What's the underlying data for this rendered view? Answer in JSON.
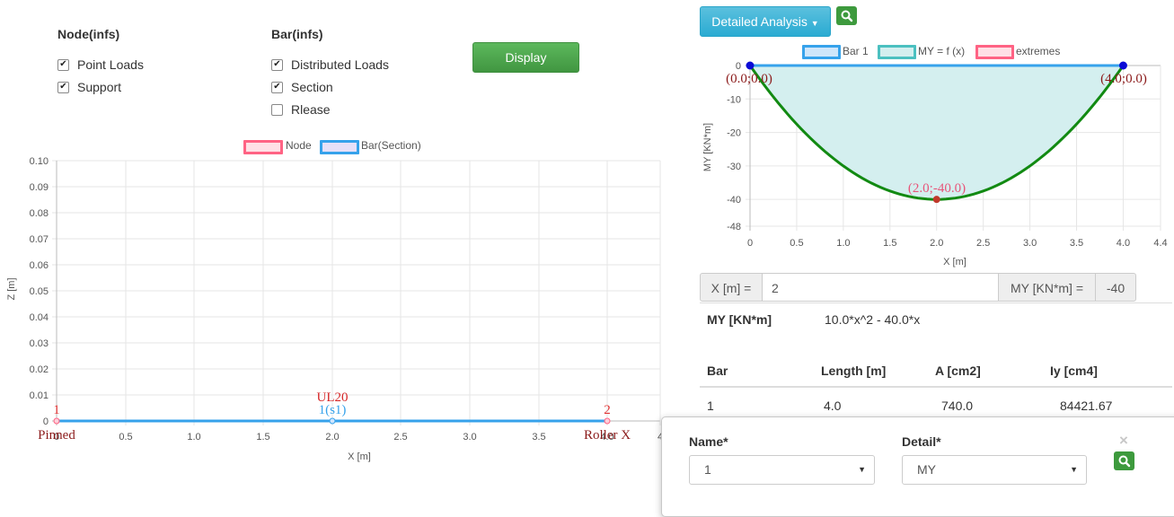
{
  "node_panel": {
    "title": "Node(infs)",
    "options": [
      {
        "label": "Point Loads",
        "checked": true
      },
      {
        "label": "Support",
        "checked": true
      }
    ]
  },
  "bar_panel": {
    "title": "Bar(infs)",
    "options": [
      {
        "label": "Distributed Loads",
        "checked": true
      },
      {
        "label": "Section",
        "checked": true
      },
      {
        "label": "Rlease",
        "checked": false
      }
    ]
  },
  "display_button": "Display",
  "structure_chart": {
    "legend": [
      "Node",
      "Bar(Section)"
    ],
    "xlabel": "X [m]",
    "ylabel": "Z [m]",
    "x_ticks": [
      "0",
      "0.5",
      "1.0",
      "1.5",
      "2.0",
      "2.5",
      "3.0",
      "3.5",
      "4.0",
      "4"
    ],
    "y_ticks": [
      "0",
      "0.01",
      "0.02",
      "0.03",
      "0.04",
      "0.05",
      "0.06",
      "0.07",
      "0.08",
      "0.09",
      "0.10"
    ],
    "node_labels": [
      "1",
      "2"
    ],
    "support_labels": [
      "Pinned",
      "Roller X"
    ],
    "load_label": "UL20",
    "section_label": "1(s1)",
    "colors": {
      "node": "#ff6384",
      "bar": "#36a2eb",
      "load": "#d62728",
      "grid": "#e6e6e6"
    }
  },
  "analysis_button": "Detailed Analysis",
  "search_icon": "search-icon",
  "moment_chart": {
    "legend": [
      "Bar 1",
      "MY = f (x)",
      "extremes"
    ],
    "xlabel": "X [m]",
    "ylabel": "MY  [KN*m]",
    "x_ticks": [
      "0",
      "0.5",
      "1.0",
      "1.5",
      "2.0",
      "2.5",
      "3.0",
      "3.5",
      "4.0",
      "4.4"
    ],
    "y_ticks": [
      "0",
      "-10",
      "-20",
      "-30",
      "-40",
      "-48"
    ],
    "point_labels": [
      "(0.0;0.0)",
      "(4.0;0.0)",
      "(2.0;-40.0)"
    ],
    "colors": {
      "bar": "#36a2eb",
      "curve": "#128a12",
      "fill": "#d4efef",
      "extreme": "#c0392b",
      "node": "#0b0bd6",
      "label": "#8b1a1a"
    }
  },
  "chart_data": [
    {
      "type": "line",
      "title": "",
      "xlabel": "X [m]",
      "ylabel": "Z [m]",
      "xlim": [
        0,
        4.4
      ],
      "ylim": [
        0,
        0.1
      ],
      "series": [
        {
          "name": "Bar(Section)",
          "x": [
            0,
            4.0
          ],
          "y": [
            0,
            0
          ]
        },
        {
          "name": "Node",
          "x": [
            0,
            2.0,
            4.0
          ],
          "y": [
            0,
            0,
            0
          ]
        }
      ]
    },
    {
      "type": "area",
      "title": "",
      "xlabel": "X [m]",
      "ylabel": "MY  [KN*m]",
      "xlim": [
        0,
        4.4
      ],
      "ylim": [
        -48,
        0
      ],
      "series": [
        {
          "name": "Bar 1",
          "x": [
            0,
            4.0
          ],
          "y": [
            0,
            0
          ]
        },
        {
          "name": "MY = f (x)",
          "x": [
            0,
            0.5,
            1.0,
            1.5,
            2.0,
            2.5,
            3.0,
            3.5,
            4.0
          ],
          "y": [
            0,
            -17.5,
            -30,
            -37.5,
            -40,
            -37.5,
            -30,
            -17.5,
            0
          ]
        },
        {
          "name": "extremes",
          "x": [
            2.0
          ],
          "y": [
            -40.0
          ]
        }
      ]
    }
  ],
  "query": {
    "x_label": "X [m] =",
    "x_value": "2",
    "my_label": "MY [KN*m] =",
    "my_value": "-40"
  },
  "formula": {
    "label": "MY [KN*m]",
    "expr": "10.0*x^2 - 40.0*x"
  },
  "table": {
    "headers": [
      "Bar",
      "Length [m]",
      "A [cm2]",
      "Iy [cm4]"
    ],
    "rows": [
      [
        "1",
        "4.0",
        "740.0",
        "84421.67"
      ]
    ]
  },
  "popup": {
    "name_label": "Name*",
    "name_value": "1",
    "detail_label": "Detail*",
    "detail_value": "MY",
    "close": "×"
  }
}
